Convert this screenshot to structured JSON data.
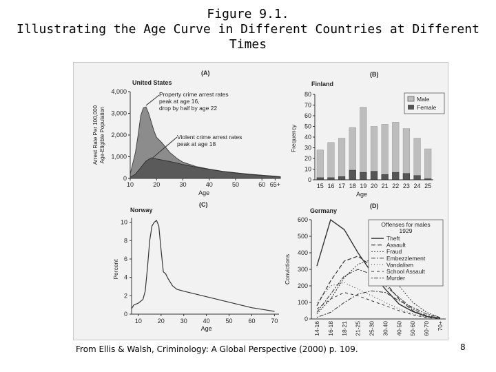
{
  "title": {
    "line1": "Figure 9.1.",
    "line2": "Illustrating the Age Curve in Different Countries at Different",
    "line3": "Times"
  },
  "caption": "From Ellis & Walsh, Criminology: A Global Perspective (2000) p. 109.",
  "page_number": "8",
  "chart_data": [
    {
      "type": "area",
      "panel": "(A)",
      "title": "United States",
      "ylabel": "Arrest Rate Per 100,000 Age-Eligible Population",
      "xlabel": "Age",
      "xticks": [
        "10",
        "20",
        "30",
        "40",
        "50",
        "60",
        "65+"
      ],
      "yticks": [
        "0",
        "1,000",
        "2,000",
        "3,000",
        "4,000"
      ],
      "xlim": [
        10,
        67
      ],
      "ylim": [
        0,
        4000
      ],
      "annotations": [
        "Property crime arrest rates peak at age 16, drop by half by age 22",
        "Violent crime arrest rates peak at age 18"
      ],
      "series": [
        {
          "name": "Property crime",
          "x": [
            10,
            12,
            13,
            14,
            15,
            16,
            17,
            18,
            19,
            20,
            22,
            25,
            28,
            30,
            35,
            40,
            45,
            50,
            55,
            60,
            65,
            67
          ],
          "y": [
            200,
            1200,
            2000,
            2900,
            3250,
            3300,
            3000,
            2600,
            2200,
            1900,
            1650,
            1200,
            900,
            750,
            550,
            430,
            330,
            260,
            200,
            150,
            100,
            80
          ]
        },
        {
          "name": "Violent crime",
          "x": [
            10,
            12,
            14,
            16,
            18,
            20,
            22,
            25,
            28,
            30,
            35,
            40,
            45,
            50,
            55,
            60,
            65,
            67
          ],
          "y": [
            50,
            200,
            500,
            800,
            950,
            900,
            850,
            780,
            700,
            640,
            520,
            420,
            320,
            250,
            180,
            140,
            90,
            70
          ]
        }
      ]
    },
    {
      "type": "bar",
      "panel": "(B)",
      "title": "Finland",
      "ylabel": "Frequency",
      "xlabel": "Age",
      "categories": [
        "15",
        "16",
        "17",
        "18",
        "19",
        "20",
        "21",
        "22",
        "23",
        "24",
        "25"
      ],
      "yticks": [
        "0",
        "10",
        "20",
        "30",
        "40",
        "50",
        "60",
        "70",
        "80"
      ],
      "ylim": [
        0,
        80
      ],
      "legend": [
        "Male",
        "Female"
      ],
      "series": [
        {
          "name": "Male",
          "values": [
            28,
            35,
            39,
            49,
            68,
            50,
            52,
            54,
            48,
            39,
            29
          ]
        },
        {
          "name": "Female",
          "values": [
            2,
            2,
            3,
            9,
            7,
            8,
            5,
            7,
            6,
            4,
            1
          ]
        }
      ]
    },
    {
      "type": "line",
      "panel": "(C)",
      "title": "Norway",
      "ylabel": "Percent",
      "xlabel": "Age",
      "xticks": [
        "10",
        "20",
        "30",
        "40",
        "50",
        "60",
        "70"
      ],
      "yticks": [
        "0",
        "2",
        "4",
        "6",
        "8",
        "10"
      ],
      "xlim": [
        7,
        72
      ],
      "ylim": [
        0,
        10.5
      ],
      "x": [
        7,
        8,
        10,
        12,
        13,
        14,
        15,
        16,
        17,
        18,
        19,
        20,
        21,
        22,
        23,
        25,
        27,
        30,
        35,
        40,
        45,
        50,
        55,
        60,
        65,
        70
      ],
      "y": [
        0.6,
        1.0,
        1.2,
        1.6,
        2.5,
        5.0,
        8.0,
        9.6,
        10.0,
        10.2,
        9.6,
        7.0,
        4.6,
        4.4,
        3.9,
        3.1,
        2.7,
        2.5,
        2.2,
        1.9,
        1.6,
        1.3,
        1.0,
        0.7,
        0.5,
        0.3
      ]
    },
    {
      "type": "line",
      "panel": "(D)",
      "title": "Germany",
      "ylabel": "Convictions",
      "xlabel": "Age",
      "xticks": [
        "14-16",
        "16-18",
        "18-21",
        "21-25",
        "25-30",
        "30-40",
        "40-50",
        "50-60",
        "60-70",
        "70+"
      ],
      "yticks": [
        "0",
        "100",
        "200",
        "300",
        "400",
        "500",
        "600"
      ],
      "ylim": [
        0,
        600
      ],
      "legend_title": "Offenses for males 1929",
      "legend": [
        "Theft",
        "Assault",
        "Fraud",
        "Embezzlement",
        "Vandalism",
        "School Assault",
        "Murder"
      ],
      "series": [
        {
          "name": "Theft",
          "values": [
            320,
            600,
            540,
            400,
            280,
            180,
            90,
            45,
            15,
            5
          ]
        },
        {
          "name": "Assault",
          "values": [
            80,
            230,
            350,
            380,
            320,
            220,
            120,
            50,
            15,
            5
          ]
        },
        {
          "name": "Fraud",
          "values": [
            30,
            120,
            250,
            330,
            360,
            300,
            200,
            100,
            40,
            8
          ]
        },
        {
          "name": "Embezzlement",
          "values": [
            40,
            150,
            260,
            300,
            270,
            200,
            130,
            60,
            20,
            5
          ]
        },
        {
          "name": "Vandalism",
          "values": [
            100,
            200,
            220,
            180,
            140,
            100,
            60,
            30,
            10,
            3
          ]
        },
        {
          "name": "School Assault",
          "values": [
            60,
            120,
            160,
            140,
            110,
            80,
            50,
            25,
            8,
            2
          ]
        },
        {
          "name": "Murder",
          "values": [
            10,
            40,
            100,
            150,
            170,
            160,
            110,
            70,
            30,
            10
          ]
        }
      ]
    }
  ]
}
